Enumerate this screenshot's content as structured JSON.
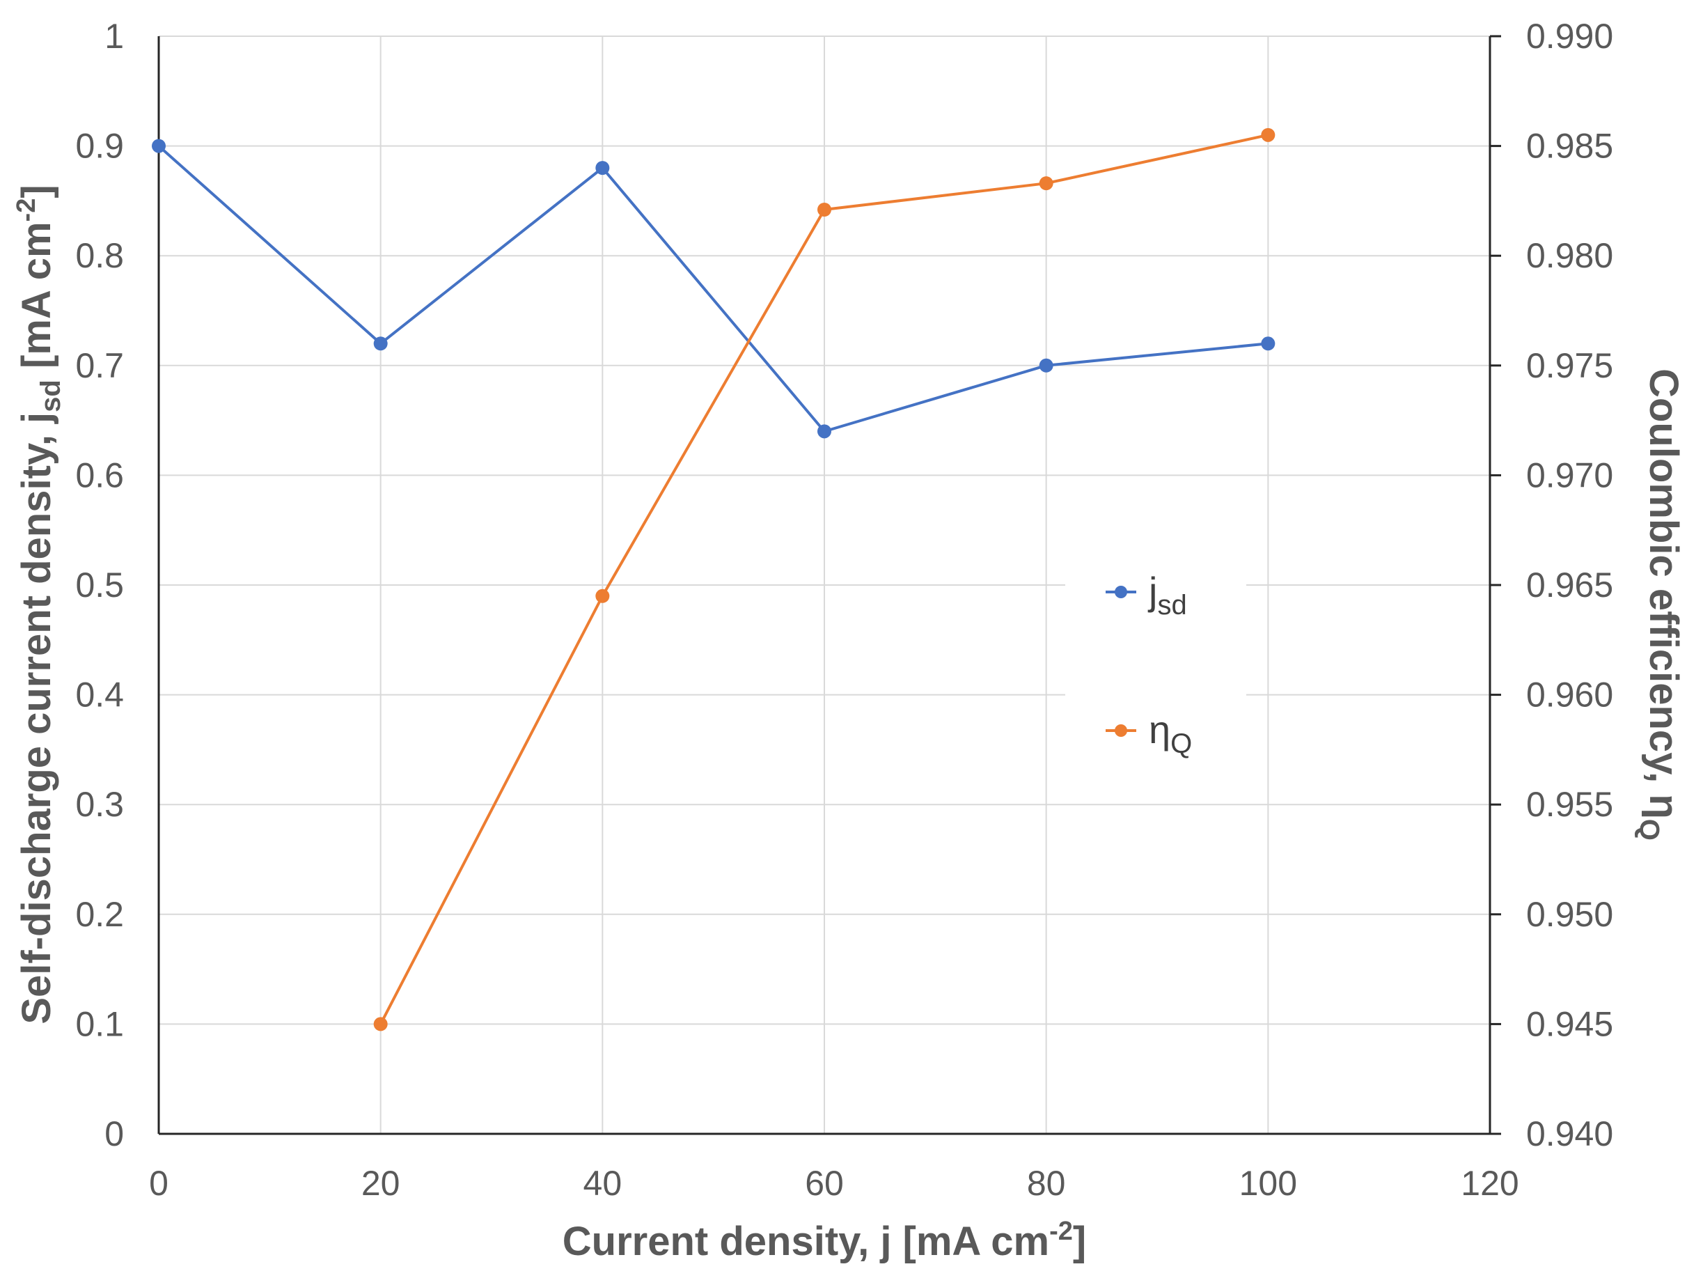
{
  "chart_data": {
    "type": "line",
    "title": "",
    "x": [
      0,
      20,
      40,
      60,
      80,
      100
    ],
    "xlabel": "Current density, j [mA cm-2]",
    "xlabel_parts": {
      "main": "Current density, j [mA cm",
      "sup": "-2",
      "end": "]"
    },
    "xlim": [
      0,
      120
    ],
    "xticks": [
      "0",
      "20",
      "40",
      "60",
      "80",
      "100",
      "120"
    ],
    "ylabel_left": "Self-discharge current density, jsd [mA cm-2]",
    "ylabel_left_parts": {
      "a": "Self-discharge current density, j",
      "sub": "sd",
      "b": " [mA cm",
      "sup": "-2",
      "c": "]"
    },
    "ylim_left": [
      0,
      1
    ],
    "yticks_left": [
      "0",
      "0.1",
      "0.2",
      "0.3",
      "0.4",
      "0.5",
      "0.6",
      "0.7",
      "0.8",
      "0.9",
      "1"
    ],
    "ylabel_right": "Coulombic efficiency, ηQ",
    "ylabel_right_parts": {
      "a": "Coulombic efficiency, η",
      "sub": "Q"
    },
    "ylim_right": [
      0.94,
      0.99
    ],
    "yticks_right": [
      "0.940",
      "0.945",
      "0.950",
      "0.955",
      "0.960",
      "0.965",
      "0.970",
      "0.975",
      "0.980",
      "0.985",
      "0.990"
    ],
    "grid": true,
    "legend_position": "center-right",
    "series": [
      {
        "name": "jsd",
        "name_main": "j",
        "name_sub": "sd",
        "axis": "left",
        "color": "#4472C4",
        "x": [
          0,
          20,
          40,
          60,
          80,
          100
        ],
        "values": [
          0.9,
          0.72,
          0.88,
          0.64,
          0.7,
          0.72
        ]
      },
      {
        "name": "ηQ",
        "name_main": "η",
        "name_sub": "Q",
        "axis": "right",
        "color": "#ED7D31",
        "x": [
          20,
          40,
          60,
          80,
          100
        ],
        "values": [
          0.945,
          0.9645,
          0.9821,
          0.9833,
          0.9855
        ]
      }
    ]
  }
}
